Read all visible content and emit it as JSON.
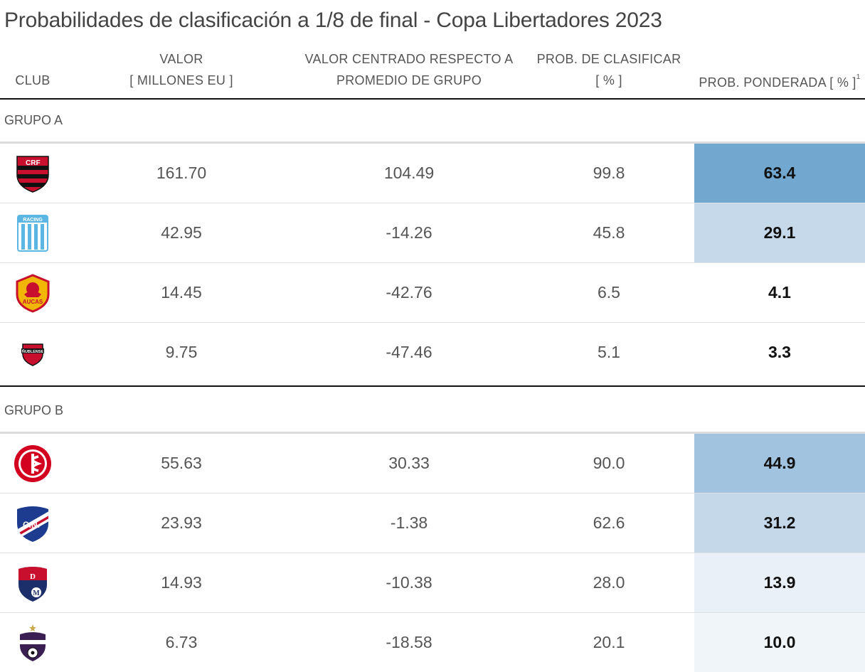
{
  "title": "Probabilidades de clasificación a 1/8 de final - Copa Libertadores 2023",
  "headers": {
    "club": "CLUB",
    "valor_line1": "VALOR",
    "valor_line2": "[ MILLONES EU ]",
    "centrado_line1": "VALOR CENTRADO RESPECTO A",
    "centrado_line2": "PROMEDIO DE GRUPO",
    "prob_line1": "PROB. DE CLASIFICAR",
    "prob_line2": "[ % ]",
    "ponderada": "PROB. PONDERADA [ % ]",
    "footnote_mark": "1"
  },
  "groups": [
    {
      "label": "GRUPO A",
      "rows": [
        {
          "logo": "flamengo-logo",
          "valor": "161.70",
          "centrado": "104.49",
          "prob": "99.8",
          "ponderada": "63.4",
          "shade": "#72a8cf"
        },
        {
          "logo": "racing-logo",
          "valor": "42.95",
          "centrado": "-14.26",
          "prob": "45.8",
          "ponderada": "29.1",
          "shade": "#c6d9ea"
        },
        {
          "logo": "aucas-logo",
          "valor": "14.45",
          "centrado": "-42.76",
          "prob": "6.5",
          "ponderada": "4.1",
          "shade": "#ffffff"
        },
        {
          "logo": "nublense-logo",
          "valor": "9.75",
          "centrado": "-47.46",
          "prob": "5.1",
          "ponderada": "3.3",
          "shade": "#ffffff"
        }
      ]
    },
    {
      "label": "GRUPO B",
      "rows": [
        {
          "logo": "internacional-logo",
          "valor": "55.63",
          "centrado": "30.33",
          "prob": "90.0",
          "ponderada": "44.9",
          "shade": "#a1c3df"
        },
        {
          "logo": "nacional-logo",
          "valor": "23.93",
          "centrado": "-1.38",
          "prob": "62.6",
          "ponderada": "31.2",
          "shade": "#c4d8ea"
        },
        {
          "logo": "medellin-logo",
          "valor": "14.93",
          "centrado": "-10.38",
          "prob": "28.0",
          "ponderada": "13.9",
          "shade": "#e9f0f7"
        },
        {
          "logo": "metropolitanos-logo",
          "valor": "6.73",
          "centrado": "-18.58",
          "prob": "20.1",
          "ponderada": "10.0",
          "shade": "#f0f5fa"
        }
      ]
    }
  ]
}
